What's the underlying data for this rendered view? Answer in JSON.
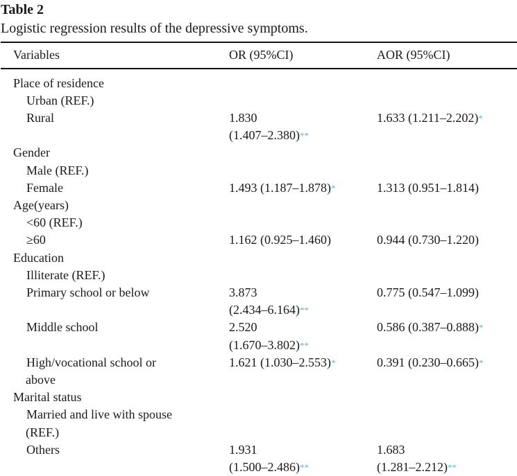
{
  "table": {
    "title": "Table 2",
    "caption": "Logistic regression results of the depressive symptoms.",
    "headers": [
      "Variables",
      "OR (95%CI)",
      "AOR (95%CI)"
    ],
    "rows": [
      {
        "label": "Place of residence"
      },
      {
        "label": "Urban (REF.)"
      },
      {
        "label": "Rural",
        "or_est": "1.830",
        "or_ci": "(1.407–2.380)",
        "or_sig": "**",
        "aor_est": "1.633",
        "aor_ci": "(1.211–2.202)",
        "aor_sig": "*"
      },
      {
        "label": "Gender"
      },
      {
        "label": "Male (REF.)"
      },
      {
        "label": "Female",
        "or_est": "1.493",
        "or_ci": "(1.187–1.878)",
        "or_sig": "*",
        "aor_est": "1.313",
        "aor_ci": "(0.951–1.814)"
      },
      {
        "label": "Age(years)"
      },
      {
        "label": "<60 (REF.)"
      },
      {
        "label": "≥60",
        "or_est": "1.162",
        "or_ci": "(0.925–1.460)",
        "aor_est": "0.944",
        "aor_ci": "(0.730–1.220)"
      },
      {
        "label": "Education"
      },
      {
        "label": "Illiterate (REF.)"
      },
      {
        "label": "Primary school or below",
        "or_est": "3.873",
        "or_ci": "(2.434–6.164)",
        "or_sig": "**",
        "aor_est": "0.775",
        "aor_ci": "(0.547–1.099)"
      },
      {
        "label": "Middle school",
        "or_est": "2.520",
        "or_ci": "(1.670–3.802)",
        "or_sig": "**",
        "aor_est": "0.586",
        "aor_ci": "(0.387–0.888)",
        "aor_sig": "*"
      },
      {
        "label": "High/vocational school or",
        "label2": "above",
        "or_est": "1.621",
        "or_ci": "(1.030–2.553)",
        "or_sig": "*",
        "aor_est": "0.391",
        "aor_ci": "(0.230–0.665)",
        "aor_sig": "*"
      },
      {
        "label": "Marital status"
      },
      {
        "label": "Married and live with spouse",
        "label2": "(REF.)"
      },
      {
        "label": "Others",
        "or_est": "1.931",
        "or_ci": "(1.500–2.486)",
        "or_sig": "**",
        "aor_est": "1.683",
        "aor_ci": "(1.281–2.212)",
        "aor_sig": "**"
      }
    ]
  },
  "colors": {
    "significance": "#5ab4e0"
  }
}
